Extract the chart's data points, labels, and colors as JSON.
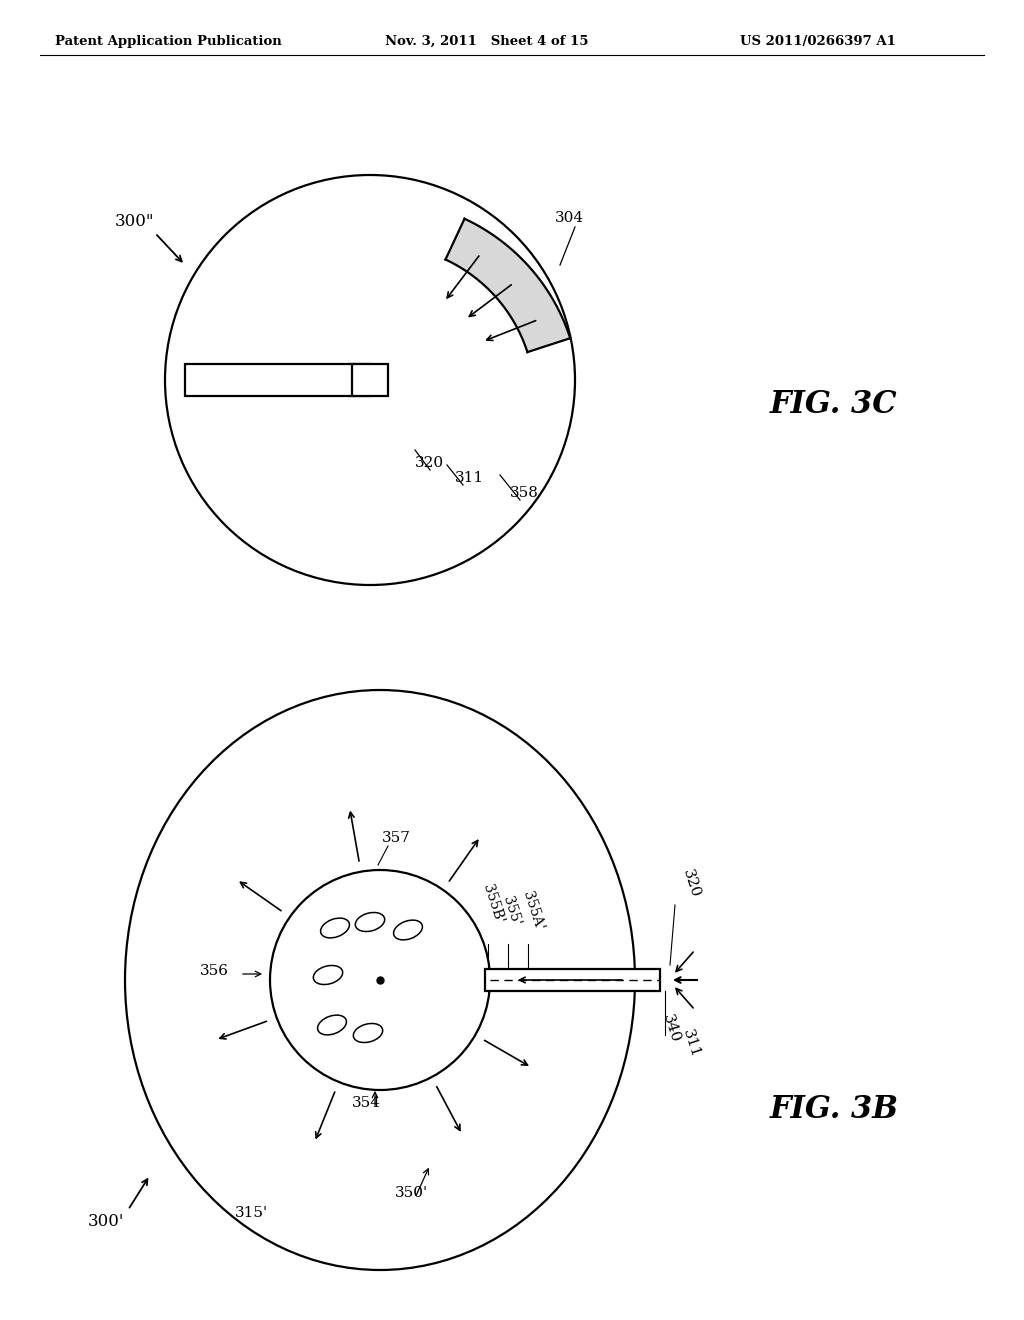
{
  "bg_color": "#ffffff",
  "line_color": "#000000",
  "header_left": "Patent Application Publication",
  "header_mid": "Nov. 3, 2011   Sheet 4 of 15",
  "header_right": "US 2011/0266397 A1"
}
